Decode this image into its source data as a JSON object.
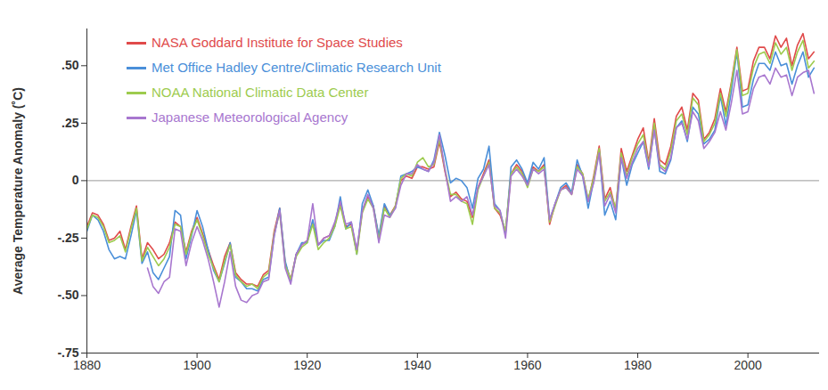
{
  "chart_data": {
    "type": "line",
    "y_label": "Average Temperature Anomaly (˚C)",
    "x": [
      1880,
      1881,
      1882,
      1883,
      1884,
      1885,
      1886,
      1887,
      1888,
      1889,
      1890,
      1891,
      1892,
      1893,
      1894,
      1895,
      1896,
      1897,
      1898,
      1899,
      1900,
      1901,
      1902,
      1903,
      1904,
      1905,
      1906,
      1907,
      1908,
      1909,
      1910,
      1911,
      1912,
      1913,
      1914,
      1915,
      1916,
      1917,
      1918,
      1919,
      1920,
      1921,
      1922,
      1923,
      1924,
      1925,
      1926,
      1927,
      1928,
      1929,
      1930,
      1931,
      1932,
      1933,
      1934,
      1935,
      1936,
      1937,
      1938,
      1939,
      1940,
      1941,
      1942,
      1943,
      1944,
      1945,
      1946,
      1947,
      1948,
      1949,
      1950,
      1951,
      1952,
      1953,
      1954,
      1955,
      1956,
      1957,
      1958,
      1959,
      1960,
      1961,
      1962,
      1963,
      1964,
      1965,
      1966,
      1967,
      1968,
      1969,
      1970,
      1971,
      1972,
      1973,
      1974,
      1975,
      1976,
      1977,
      1978,
      1979,
      1980,
      1981,
      1982,
      1983,
      1984,
      1985,
      1986,
      1987,
      1988,
      1989,
      1990,
      1991,
      1992,
      1993,
      1994,
      1995,
      1996,
      1997,
      1998,
      1999,
      2000,
      2001,
      2002,
      2003,
      2004,
      2005,
      2006,
      2007,
      2008,
      2009,
      2010,
      2011,
      2012
    ],
    "series": [
      {
        "name": "NASA Goddard Institute for Space Studies",
        "color": "#e04a4a",
        "values": [
          -0.2,
          -0.14,
          -0.15,
          -0.19,
          -0.26,
          -0.25,
          -0.22,
          -0.3,
          -0.2,
          -0.11,
          -0.34,
          -0.27,
          -0.3,
          -0.34,
          -0.32,
          -0.27,
          -0.18,
          -0.2,
          -0.31,
          -0.22,
          -0.16,
          -0.23,
          -0.3,
          -0.37,
          -0.43,
          -0.33,
          -0.27,
          -0.4,
          -0.43,
          -0.45,
          -0.45,
          -0.46,
          -0.41,
          -0.39,
          -0.22,
          -0.12,
          -0.36,
          -0.43,
          -0.32,
          -0.28,
          -0.26,
          -0.18,
          -0.28,
          -0.25,
          -0.24,
          -0.19,
          -0.1,
          -0.2,
          -0.19,
          -0.31,
          -0.13,
          -0.07,
          -0.11,
          -0.25,
          -0.11,
          -0.15,
          -0.11,
          0.0,
          0.02,
          0.01,
          0.06,
          0.06,
          0.05,
          0.06,
          0.17,
          0.04,
          -0.07,
          -0.05,
          -0.08,
          -0.09,
          -0.16,
          -0.03,
          0.03,
          0.09,
          -0.12,
          -0.15,
          -0.22,
          0.03,
          0.07,
          0.04,
          -0.02,
          0.06,
          0.04,
          0.07,
          -0.19,
          -0.1,
          -0.04,
          -0.02,
          -0.06,
          0.07,
          0.03,
          -0.09,
          0.02,
          0.15,
          -0.08,
          -0.03,
          -0.13,
          0.14,
          0.04,
          0.11,
          0.18,
          0.23,
          0.08,
          0.27,
          0.09,
          0.07,
          0.15,
          0.28,
          0.32,
          0.22,
          0.38,
          0.35,
          0.18,
          0.21,
          0.27,
          0.4,
          0.3,
          0.43,
          0.58,
          0.39,
          0.4,
          0.52,
          0.58,
          0.58,
          0.53,
          0.63,
          0.58,
          0.62,
          0.5,
          0.59,
          0.64,
          0.53,
          0.56
        ]
      },
      {
        "name": "Met Office Hadley Centre/Climatic Research Unit",
        "color": "#4a8fd9",
        "values": [
          -0.22,
          -0.15,
          -0.17,
          -0.22,
          -0.3,
          -0.34,
          -0.33,
          -0.34,
          -0.24,
          -0.13,
          -0.36,
          -0.31,
          -0.4,
          -0.43,
          -0.38,
          -0.33,
          -0.13,
          -0.15,
          -0.34,
          -0.24,
          -0.13,
          -0.2,
          -0.3,
          -0.39,
          -0.44,
          -0.36,
          -0.27,
          -0.42,
          -0.44,
          -0.47,
          -0.47,
          -0.48,
          -0.43,
          -0.42,
          -0.24,
          -0.12,
          -0.35,
          -0.44,
          -0.32,
          -0.27,
          -0.27,
          -0.17,
          -0.28,
          -0.26,
          -0.26,
          -0.2,
          -0.07,
          -0.21,
          -0.18,
          -0.32,
          -0.1,
          -0.04,
          -0.11,
          -0.24,
          -0.1,
          -0.15,
          -0.12,
          0.02,
          0.03,
          0.04,
          0.06,
          0.05,
          0.04,
          0.09,
          0.21,
          0.11,
          -0.01,
          0.01,
          0.0,
          -0.03,
          -0.12,
          0.01,
          0.05,
          0.15,
          -0.1,
          -0.13,
          -0.23,
          0.06,
          0.09,
          0.05,
          -0.01,
          0.08,
          0.05,
          0.1,
          -0.17,
          -0.1,
          -0.03,
          -0.01,
          -0.05,
          0.09,
          0.02,
          -0.12,
          0.0,
          0.13,
          -0.15,
          -0.09,
          -0.17,
          0.1,
          -0.02,
          0.07,
          0.12,
          0.17,
          0.05,
          0.23,
          0.04,
          0.03,
          0.09,
          0.23,
          0.26,
          0.17,
          0.32,
          0.29,
          0.16,
          0.18,
          0.22,
          0.37,
          0.24,
          0.39,
          0.56,
          0.32,
          0.33,
          0.44,
          0.51,
          0.51,
          0.48,
          0.56,
          0.5,
          0.51,
          0.42,
          0.5,
          0.56,
          0.45,
          0.49
        ]
      },
      {
        "name": "NOAA National Climatic Data Center",
        "color": "#9dcb4e",
        "values": [
          -0.21,
          -0.15,
          -0.16,
          -0.2,
          -0.27,
          -0.26,
          -0.24,
          -0.31,
          -0.21,
          -0.12,
          -0.35,
          -0.29,
          -0.33,
          -0.37,
          -0.34,
          -0.29,
          -0.19,
          -0.2,
          -0.32,
          -0.23,
          -0.17,
          -0.24,
          -0.32,
          -0.38,
          -0.44,
          -0.35,
          -0.28,
          -0.41,
          -0.44,
          -0.46,
          -0.45,
          -0.47,
          -0.42,
          -0.4,
          -0.23,
          -0.14,
          -0.37,
          -0.43,
          -0.33,
          -0.29,
          -0.27,
          -0.19,
          -0.3,
          -0.27,
          -0.25,
          -0.2,
          -0.11,
          -0.21,
          -0.2,
          -0.32,
          -0.14,
          -0.08,
          -0.12,
          -0.26,
          -0.12,
          -0.16,
          -0.11,
          0.01,
          0.03,
          0.02,
          0.08,
          0.1,
          0.06,
          0.07,
          0.18,
          0.05,
          -0.06,
          -0.06,
          -0.09,
          -0.1,
          -0.19,
          -0.04,
          0.02,
          0.08,
          -0.12,
          -0.14,
          -0.22,
          0.03,
          0.06,
          0.03,
          -0.03,
          0.05,
          0.04,
          0.06,
          -0.18,
          -0.11,
          -0.04,
          -0.03,
          -0.06,
          0.06,
          0.03,
          -0.08,
          0.01,
          0.14,
          -0.09,
          -0.05,
          -0.12,
          0.12,
          0.02,
          0.1,
          0.16,
          0.2,
          0.07,
          0.25,
          0.07,
          0.05,
          0.13,
          0.26,
          0.29,
          0.2,
          0.36,
          0.33,
          0.17,
          0.2,
          0.25,
          0.38,
          0.28,
          0.42,
          0.57,
          0.37,
          0.38,
          0.49,
          0.55,
          0.56,
          0.51,
          0.6,
          0.55,
          0.58,
          0.48,
          0.56,
          0.61,
          0.49,
          0.52
        ]
      },
      {
        "name": "Japanese Meteorological Agency",
        "color": "#a877cf",
        "values": [
          null,
          null,
          null,
          null,
          null,
          null,
          null,
          null,
          null,
          null,
          null,
          -0.38,
          -0.46,
          -0.49,
          -0.44,
          -0.42,
          -0.21,
          -0.22,
          -0.37,
          -0.27,
          -0.2,
          -0.26,
          -0.34,
          -0.44,
          -0.55,
          -0.44,
          -0.31,
          -0.46,
          -0.52,
          -0.53,
          -0.5,
          -0.49,
          -0.44,
          -0.43,
          -0.24,
          -0.13,
          -0.38,
          -0.45,
          -0.32,
          -0.28,
          -0.26,
          -0.1,
          -0.28,
          -0.25,
          -0.24,
          -0.18,
          -0.09,
          -0.19,
          -0.18,
          -0.3,
          -0.13,
          -0.06,
          -0.12,
          -0.27,
          -0.15,
          -0.16,
          -0.12,
          -0.02,
          0.03,
          0.03,
          0.07,
          0.05,
          0.04,
          0.08,
          0.2,
          0.05,
          -0.09,
          -0.07,
          -0.09,
          -0.07,
          -0.15,
          -0.03,
          0.02,
          0.07,
          -0.11,
          -0.13,
          -0.25,
          0.02,
          0.05,
          0.02,
          -0.02,
          0.05,
          0.03,
          0.05,
          -0.17,
          -0.1,
          -0.04,
          -0.03,
          -0.06,
          0.05,
          0.02,
          -0.09,
          -0.01,
          0.12,
          -0.11,
          -0.06,
          -0.14,
          0.1,
          0.01,
          0.08,
          0.14,
          0.17,
          0.06,
          0.22,
          0.06,
          0.04,
          0.1,
          0.23,
          0.25,
          0.18,
          0.3,
          0.26,
          0.14,
          0.17,
          0.21,
          0.3,
          0.22,
          0.34,
          0.48,
          0.29,
          0.3,
          0.4,
          0.45,
          0.46,
          0.42,
          0.49,
          0.45,
          0.46,
          0.37,
          0.45,
          0.47,
          0.48,
          0.38
        ]
      }
    ],
    "xlim": [
      1880,
      2013
    ],
    "xticks": [
      1880,
      1900,
      1920,
      1940,
      1960,
      1980,
      2000
    ],
    "ylim": [
      -0.75,
      0.66
    ],
    "yticks": [
      {
        "value": -0.75,
        "label": "-.75"
      },
      {
        "value": -0.5,
        "label": "-.50"
      },
      {
        "value": -0.25,
        "label": "-.25"
      },
      0,
      {
        "value": 0.25,
        "label": ".25"
      },
      {
        "value": 0.5,
        "label": ".50"
      }
    ],
    "legend": "top-left"
  }
}
